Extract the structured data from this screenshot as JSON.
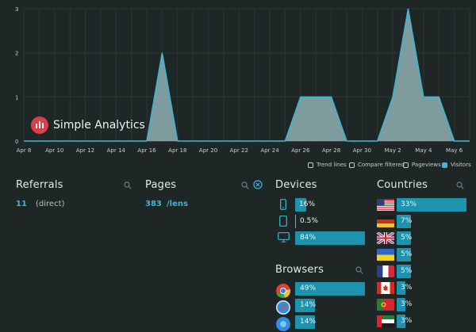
{
  "chart_data": {
    "type": "area",
    "x": [
      "Apr 8",
      "Apr 9",
      "Apr 10",
      "Apr 11",
      "Apr 12",
      "Apr 13",
      "Apr 14",
      "Apr 15",
      "Apr 16",
      "Apr 17",
      "Apr 18",
      "Apr 19",
      "Apr 20",
      "Apr 21",
      "Apr 22",
      "Apr 23",
      "Apr 24",
      "Apr 25",
      "Apr 26",
      "Apr 27",
      "Apr 28",
      "Apr 29",
      "Apr 30",
      "May 1",
      "May 2",
      "May 3",
      "May 4",
      "May 5",
      "May 6",
      "May 7"
    ],
    "series": [
      {
        "values": [
          0,
          0,
          0,
          0,
          0,
          0,
          0,
          0,
          0,
          2,
          0,
          0,
          0,
          0,
          0,
          0,
          0,
          0,
          1,
          1,
          1,
          0,
          0,
          0,
          1,
          3,
          1,
          1,
          0,
          0
        ]
      }
    ],
    "x_tick_labels": [
      "Apr 8",
      "Apr 10",
      "Apr 12",
      "Apr 14",
      "Apr 16",
      "Apr 18",
      "Apr 20",
      "Apr 22",
      "Apr 24",
      "Apr 26",
      "Apr 28",
      "Apr 30",
      "May 2",
      "May 4",
      "May 6"
    ],
    "y_tick_labels": [
      "0",
      "1",
      "2",
      "3"
    ],
    "ylim": [
      0,
      3
    ],
    "grid": true,
    "colors": {
      "fill": "#8fb0b3",
      "line": "#3ab8d6"
    }
  },
  "brand": {
    "name": "Simple Analytics",
    "logo_color": "#d9414a"
  },
  "legend": {
    "trend_lines": "Trend lines",
    "compare_filtered": "Compare filtered",
    "pageviews": "Pageviews",
    "visitors": "Visitors"
  },
  "referrals": {
    "title": "Referrals",
    "items": [
      {
        "count": "11",
        "label": "(direct)"
      }
    ]
  },
  "pages": {
    "title": "Pages",
    "items": [
      {
        "count": "383",
        "label": "/lens"
      }
    ]
  },
  "devices": {
    "title": "Devices",
    "items": [
      {
        "icon": "phone-icon",
        "pct": "16%",
        "value": 16
      },
      {
        "icon": "tablet-icon",
        "pct": "0.5%",
        "value": 0.5
      },
      {
        "icon": "desktop-icon",
        "pct": "84%",
        "value": 84
      }
    ]
  },
  "browsers": {
    "title": "Browsers",
    "items": [
      {
        "icon": "chrome-icon",
        "pct": "49%",
        "value": 49
      },
      {
        "icon": "safari-icon",
        "pct": "14%",
        "value": 14
      },
      {
        "icon": "browser-icon",
        "pct": "14%",
        "value": 14
      }
    ]
  },
  "countries": {
    "title": "Countries",
    "items": [
      {
        "flag": "us",
        "pct": "33%",
        "value": 33
      },
      {
        "flag": "de",
        "pct": "7%",
        "value": 7
      },
      {
        "flag": "gb",
        "pct": "5%",
        "value": 5
      },
      {
        "flag": "ua",
        "pct": "5%",
        "value": 5
      },
      {
        "flag": "fr",
        "pct": "5%",
        "value": 5
      },
      {
        "flag": "ca",
        "pct": "3%",
        "value": 3
      },
      {
        "flag": "pt",
        "pct": "3%",
        "value": 3
      },
      {
        "flag": "ae",
        "pct": "3%",
        "value": 3
      }
    ]
  }
}
